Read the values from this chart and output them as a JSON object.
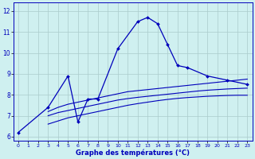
{
  "title": "Graphe des températures (°C)",
  "background_color": "#cff0f0",
  "grid_color": "#aacccc",
  "line_color": "#0000bb",
  "main_x": [
    0,
    3,
    5,
    6,
    7,
    8,
    10,
    12,
    13,
    14,
    15,
    16,
    17,
    19,
    21,
    23
  ],
  "main_y": [
    6.2,
    7.4,
    8.9,
    6.7,
    7.8,
    7.8,
    10.2,
    11.5,
    11.7,
    11.4,
    10.4,
    9.4,
    9.3,
    8.9,
    8.7,
    8.5
  ],
  "ref_x": [
    3,
    4,
    5,
    6,
    7,
    8,
    9,
    10,
    11,
    12,
    13,
    14,
    15,
    16,
    17,
    18,
    19,
    20,
    21,
    22,
    23
  ],
  "upper_y": [
    7.2,
    7.4,
    7.55,
    7.65,
    7.75,
    7.85,
    7.95,
    8.05,
    8.15,
    8.2,
    8.25,
    8.3,
    8.35,
    8.4,
    8.45,
    8.5,
    8.55,
    8.6,
    8.65,
    8.7,
    8.75
  ],
  "mid_y": [
    7.0,
    7.15,
    7.25,
    7.35,
    7.45,
    7.55,
    7.65,
    7.75,
    7.82,
    7.88,
    7.93,
    7.98,
    8.03,
    8.08,
    8.13,
    8.18,
    8.22,
    8.25,
    8.28,
    8.3,
    8.32
  ],
  "lower_y": [
    6.6,
    6.75,
    6.9,
    7.0,
    7.1,
    7.2,
    7.3,
    7.4,
    7.5,
    7.58,
    7.65,
    7.72,
    7.78,
    7.83,
    7.87,
    7.9,
    7.93,
    7.95,
    7.97,
    7.98,
    7.98
  ],
  "ylim": [
    5.8,
    12.4
  ],
  "xlim": [
    -0.5,
    23.5
  ],
  "yticks": [
    6,
    7,
    8,
    9,
    10,
    11,
    12
  ],
  "xticks": [
    0,
    1,
    2,
    3,
    4,
    5,
    6,
    7,
    8,
    9,
    10,
    11,
    12,
    13,
    14,
    15,
    16,
    17,
    18,
    19,
    20,
    21,
    22,
    23
  ],
  "xtick_labels": [
    "0",
    "1",
    "2",
    "3",
    "4",
    "5",
    "6",
    "7",
    "8",
    "9",
    "10",
    "11",
    "12",
    "13",
    "14",
    "15",
    "16",
    "17",
    "18",
    "19",
    "20",
    "21",
    "22",
    "23"
  ]
}
